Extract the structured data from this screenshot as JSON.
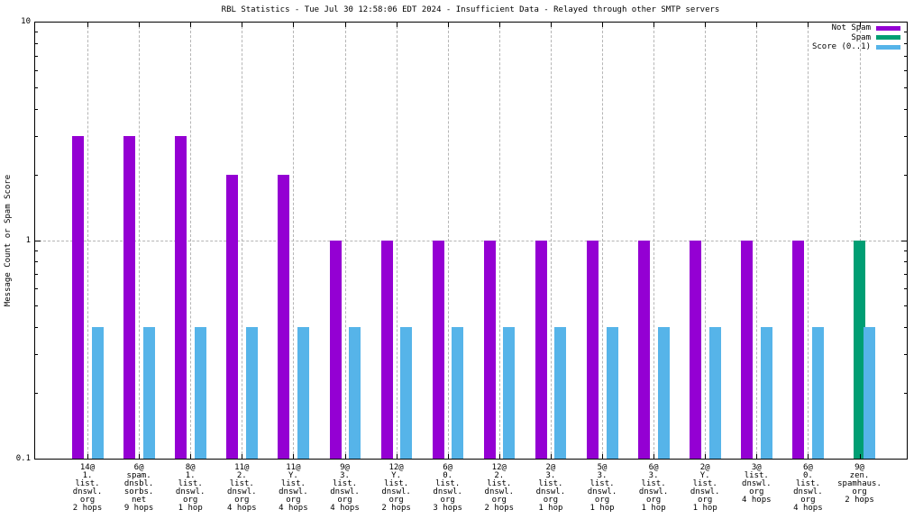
{
  "title": "RBL Statistics - Tue Jul 30 12:58:06 EDT 2024 - Insufficient Data - Relayed through other SMTP servers",
  "y_axis": {
    "label": "Message Count or Spam Score",
    "ticks": [
      "10",
      "1",
      "0.1"
    ],
    "scale": "log",
    "range": [
      0.1,
      10
    ]
  },
  "legend": {
    "position": "top-right",
    "items": [
      {
        "label": "Not Spam",
        "color": "#9400d3"
      },
      {
        "label": "Spam",
        "color": "#009e73"
      },
      {
        "label": "Score (0..1)",
        "color": "#56b4e9"
      }
    ]
  },
  "chart_data": {
    "type": "bar",
    "yscale": "log",
    "ylim": [
      0.1,
      10
    ],
    "ylabel": "Message Count or Spam Score",
    "grid": {
      "vertical": "dashed gray at each category",
      "horizontal_at": [
        1
      ]
    },
    "legend_position": "top-right",
    "categories": [
      [
        "14@",
        "1.",
        "list.",
        "dnswl.",
        "org",
        "2 hops"
      ],
      [
        "6@",
        "spam.",
        "dnsbl.",
        "sorbs.",
        "net",
        "9 hops"
      ],
      [
        "8@",
        "1.",
        "list.",
        "dnswl.",
        "org",
        "1 hop"
      ],
      [
        "11@",
        "2.",
        "list.",
        "dnswl.",
        "org",
        "4 hops"
      ],
      [
        "11@",
        "Y.",
        "list.",
        "dnswl.",
        "org",
        "4 hops"
      ],
      [
        "9@",
        "3.",
        "list.",
        "dnswl.",
        "org",
        "4 hops"
      ],
      [
        "12@",
        "Y.",
        "list.",
        "dnswl.",
        "org",
        "2 hops"
      ],
      [
        "6@",
        "0.",
        "list.",
        "dnswl.",
        "org",
        "3 hops"
      ],
      [
        "12@",
        "2.",
        "list.",
        "dnswl.",
        "org",
        "2 hops"
      ],
      [
        "2@",
        "3.",
        "list.",
        "dnswl.",
        "org",
        "1 hop"
      ],
      [
        "5@",
        "3.",
        "list.",
        "dnswl.",
        "org",
        "1 hop"
      ],
      [
        "6@",
        "3.",
        "list.",
        "dnswl.",
        "org",
        "1 hop"
      ],
      [
        "2@",
        "Y.",
        "list.",
        "dnswl.",
        "org",
        "1 hop"
      ],
      [
        "3@",
        "list.",
        "dnswl.",
        "org",
        "4 hops"
      ],
      [
        "6@",
        "0.",
        "list.",
        "dnswl.",
        "org",
        "4 hops"
      ],
      [
        "9@",
        "zen.",
        "spamhaus.",
        "org",
        "2 hops"
      ]
    ],
    "series": [
      {
        "name": "Not Spam",
        "color": "#9400d3",
        "values": [
          3,
          3,
          3,
          2,
          2,
          1,
          1,
          1,
          1,
          1,
          1,
          1,
          1,
          1,
          1,
          0
        ]
      },
      {
        "name": "Spam",
        "color": "#009e73",
        "values": [
          0,
          0,
          0,
          0,
          0,
          0,
          0,
          0,
          0,
          0,
          0,
          0,
          0,
          0,
          0,
          1
        ]
      },
      {
        "name": "Score (0..1)",
        "color": "#56b4e9",
        "values": [
          0.4,
          0.4,
          0.4,
          0.4,
          0.4,
          0.4,
          0.4,
          0.4,
          0.4,
          0.4,
          0.4,
          0.4,
          0.4,
          0.4,
          0.4,
          0.4
        ]
      }
    ]
  }
}
